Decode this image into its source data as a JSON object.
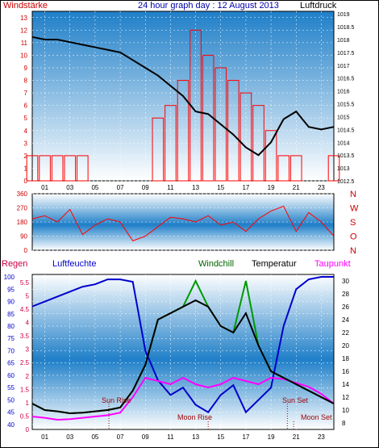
{
  "header": {
    "title": "24 hour graph day : 12 August 2013",
    "left_label": "Windstärke",
    "right_label": "Luftdruck"
  },
  "labels": {
    "regen": "Regen",
    "luftfeuchte": "Luftfeuchte",
    "windchill": "Windchill",
    "temperatur": "Temperatur",
    "taupunkt": "Taupunkt",
    "sun_rise": "Sun Rise",
    "sun_set": "Sun Set",
    "moon_rise": "Moon Rise",
    "moon_set": "Moon Set"
  },
  "colors": {
    "wind_speed": "#ff0000",
    "wind_gust_low": "#0000ff",
    "pressure": "#000000",
    "wind_dir": "#ff0000",
    "humidity": "#0000cc",
    "temperature": "#000000",
    "dewpoint": "#ff00ff",
    "windchill": "#009900",
    "title_blue": "#0000aa",
    "axis_red": "#cc0000",
    "panel_top": "#1f7fc8",
    "panel_bottom": "#ffffff"
  },
  "chart_data": [
    {
      "type": "line",
      "title": "24 hour graph day : 12 August 2013",
      "x_ticks": [
        "01",
        "03",
        "05",
        "07",
        "09",
        "11",
        "13",
        "15",
        "17",
        "19",
        "21",
        "23"
      ],
      "y_left_label": "Windstärke",
      "y_left_ticks": [
        0,
        1,
        2,
        3,
        4,
        5,
        6,
        7,
        8,
        9,
        10,
        11,
        12,
        13
      ],
      "y_right_label": "Luftdruck",
      "y_right_ticks": [
        1012.5,
        1013,
        1013.5,
        1014,
        1014.5,
        1015,
        1015.5,
        1016,
        1016.5,
        1017,
        1017.5,
        1018,
        1018.5,
        1019
      ],
      "series": [
        {
          "kind": "pressure",
          "x": [
            0,
            1,
            2,
            3,
            4,
            5,
            6,
            7,
            8,
            9,
            10,
            11,
            12,
            13,
            14,
            15,
            16,
            17,
            18,
            19,
            20,
            21,
            22,
            23,
            24
          ],
          "values": [
            1018.1,
            1018.0,
            1018.0,
            1017.9,
            1017.8,
            1017.7,
            1017.6,
            1017.5,
            1017.2,
            1016.9,
            1016.6,
            1016.2,
            1015.8,
            1015.2,
            1015.1,
            1014.7,
            1014.3,
            1013.8,
            1013.5,
            1014.0,
            1014.9,
            1015.2,
            1014.6,
            1014.5,
            1014.6
          ]
        },
        {
          "kind": "wind_speed",
          "x": [
            0,
            1,
            2,
            3,
            4,
            5,
            6,
            7,
            8,
            9,
            10,
            11,
            12,
            13,
            14,
            15,
            16,
            17,
            18,
            19,
            20,
            21,
            22,
            23,
            24
          ],
          "values": [
            2,
            2,
            2,
            2,
            2,
            0,
            0,
            0,
            0,
            0,
            5,
            6,
            8,
            12,
            10,
            9,
            8,
            7,
            6,
            4,
            2,
            2,
            0,
            0,
            2
          ]
        }
      ]
    },
    {
      "type": "line",
      "title": "",
      "y_left_ticks": [
        0,
        90,
        180,
        270,
        360
      ],
      "y_right_ticks": [
        "N",
        "W",
        "S",
        "O",
        "N"
      ],
      "series": [
        {
          "kind": "wind_direction",
          "x": [
            0,
            1,
            2,
            3,
            4,
            5,
            6,
            7,
            8,
            9,
            10,
            11,
            12,
            13,
            14,
            15,
            16,
            17,
            18,
            19,
            20,
            21,
            22,
            23,
            24
          ],
          "values": [
            200,
            220,
            180,
            260,
            100,
            160,
            200,
            180,
            60,
            90,
            150,
            210,
            200,
            180,
            220,
            160,
            180,
            120,
            200,
            250,
            280,
            120,
            240,
            180,
            90
          ]
        }
      ]
    },
    {
      "type": "line",
      "title": "",
      "x_ticks": [
        "01",
        "03",
        "05",
        "07",
        "09",
        "11",
        "13",
        "15",
        "17",
        "19",
        "21",
        "23"
      ],
      "y_left_label": "Luftfeuchte",
      "y_left_ticks": [
        40,
        45,
        50,
        55,
        60,
        65,
        70,
        75,
        80,
        85,
        90,
        95,
        100
      ],
      "y_regen_ticks": [
        0,
        0.5,
        1,
        1.5,
        2,
        2.5,
        3,
        3.5,
        4,
        4.5,
        5,
        5.5
      ],
      "y_right_ticks": [
        8,
        10,
        12,
        14,
        16,
        18,
        20,
        22,
        24,
        26,
        28,
        30
      ],
      "series": [
        {
          "name": "Luftfeuchte",
          "x": [
            0,
            1,
            2,
            3,
            4,
            5,
            6,
            7,
            8,
            9,
            10,
            11,
            12,
            13,
            14,
            15,
            16,
            17,
            18,
            19,
            20,
            21,
            22,
            23,
            24
          ],
          "values": [
            88,
            90,
            92,
            94,
            96,
            97,
            99,
            99,
            98,
            70,
            58,
            52,
            55,
            48,
            45,
            52,
            56,
            45,
            50,
            55,
            80,
            95,
            99,
            100,
            100
          ]
        },
        {
          "name": "Temperatur",
          "x": [
            0,
            1,
            2,
            3,
            4,
            5,
            6,
            7,
            8,
            9,
            10,
            11,
            12,
            13,
            14,
            15,
            16,
            17,
            18,
            19,
            20,
            21,
            22,
            23,
            24
          ],
          "values": [
            11,
            10,
            9.8,
            9.5,
            9.6,
            9.8,
            10,
            10.4,
            13,
            17,
            24,
            25,
            26,
            27,
            26,
            23,
            22,
            25,
            20,
            16,
            15,
            14,
            13,
            12,
            11
          ]
        },
        {
          "name": "Taupunkt",
          "x": [
            0,
            1,
            2,
            3,
            4,
            5,
            6,
            7,
            8,
            9,
            10,
            11,
            12,
            13,
            14,
            15,
            16,
            17,
            18,
            19,
            20,
            21,
            22,
            23,
            24
          ],
          "values": [
            9,
            8.8,
            8.5,
            8.6,
            8.8,
            9,
            9.2,
            9.6,
            12,
            15,
            14.5,
            14,
            15,
            14,
            13.5,
            14,
            15,
            14.5,
            14,
            15,
            14.8,
            14.2,
            13.6,
            12.5,
            11
          ]
        },
        {
          "name": "Windchill",
          "x": [
            0,
            1,
            2,
            3,
            4,
            5,
            6,
            7,
            8,
            9,
            10,
            11,
            12,
            13,
            14,
            15,
            16,
            17,
            18,
            19,
            20,
            21,
            22,
            23,
            24
          ],
          "values": [
            11,
            10,
            9.8,
            9.5,
            9.6,
            9.8,
            10,
            10.4,
            13,
            17,
            24,
            25,
            26,
            30,
            26,
            23,
            22,
            30,
            20,
            16,
            15,
            14,
            13,
            12,
            11
          ]
        }
      ]
    }
  ]
}
